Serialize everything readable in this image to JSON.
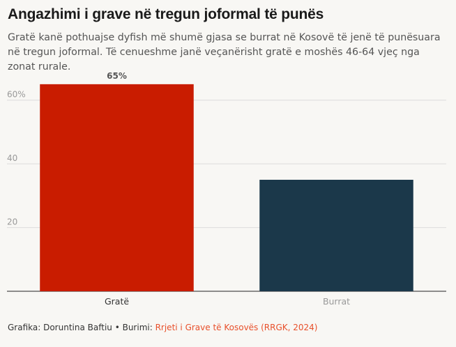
{
  "title": "Angazhimi i grave në tregun joformal të punës",
  "subtitle": "Gratë kanë pothuajse dyfish më shumë gjasa se burrat në Kosovë të jenë të punësuara në tregun joformal. Të cenueshme janë veçanërisht gratë e moshës 46-64 vjeç nga zonat rurale.",
  "footer": {
    "credit": "Grafika: Doruntina Baftiu • Burimi: ",
    "source": "Rrjeti i Grave të Kosovës (RRGK, 2024)"
  },
  "chart_data": {
    "type": "bar",
    "categories": [
      "Gratë",
      "Burrat"
    ],
    "values": [
      65,
      35
    ],
    "data_labels": [
      "65%",
      ""
    ],
    "y_ticks": [
      {
        "value": 20,
        "label": "20"
      },
      {
        "value": 40,
        "label": "40"
      },
      {
        "value": 60,
        "label": "60%"
      }
    ],
    "ylim": [
      0,
      70
    ],
    "grid": true,
    "colors": [
      "#c91c00",
      "#1b384a"
    ],
    "category_label_colors": [
      "#333333",
      "#999999"
    ]
  }
}
